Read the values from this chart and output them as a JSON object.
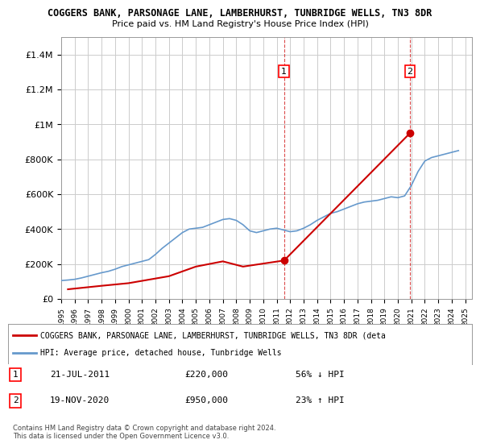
{
  "title1": "COGGERS BANK, PARSONAGE LANE, LAMBERHURST, TUNBRIDGE WELLS, TN3 8DR",
  "title2": "Price paid vs. HM Land Registry's House Price Index (HPI)",
  "ylim": [
    0,
    1500000
  ],
  "yticks": [
    0,
    200000,
    400000,
    600000,
    800000,
    1000000,
    1200000,
    1400000
  ],
  "ytick_labels": [
    "£0",
    "£200K",
    "£400K",
    "£600K",
    "£800K",
    "£1M",
    "£1.2M",
    "£1.4M"
  ],
  "year_start": 1995,
  "year_end": 2025,
  "hpi_color": "#6699cc",
  "price_color": "#cc0000",
  "vline_color_1": "#cc0000",
  "vline_color_2": "#cc0000",
  "marker_color_1": "#cc0000",
  "marker_color_2": "#cc0000",
  "transaction_1": {
    "year": 2011.55,
    "price": 220000,
    "label": "1",
    "date": "21-JUL-2011",
    "pct": "56% ↓ HPI"
  },
  "transaction_2": {
    "year": 2020.9,
    "price": 950000,
    "label": "2",
    "date": "19-NOV-2020",
    "pct": "23% ↑ HPI"
  },
  "legend_label_red": "COGGERS BANK, PARSONAGE LANE, LAMBERHURST, TUNBRIDGE WELLS, TN3 8DR (deta",
  "legend_label_blue": "HPI: Average price, detached house, Tunbridge Wells",
  "footnote": "Contains HM Land Registry data © Crown copyright and database right 2024.\nThis data is licensed under the Open Government Licence v3.0.",
  "bg_color": "#ffffff",
  "grid_color": "#cccccc",
  "hpi_data_x": [
    1995.0,
    1995.5,
    1996.0,
    1996.5,
    1997.0,
    1997.5,
    1998.0,
    1998.5,
    1999.0,
    1999.5,
    2000.0,
    2000.5,
    2001.0,
    2001.5,
    2002.0,
    2002.5,
    2003.0,
    2003.5,
    2004.0,
    2004.5,
    2005.0,
    2005.5,
    2006.0,
    2006.5,
    2007.0,
    2007.5,
    2008.0,
    2008.5,
    2009.0,
    2009.5,
    2010.0,
    2010.5,
    2011.0,
    2011.5,
    2012.0,
    2012.5,
    2013.0,
    2013.5,
    2014.0,
    2014.5,
    2015.0,
    2015.5,
    2016.0,
    2016.5,
    2017.0,
    2017.5,
    2018.0,
    2018.5,
    2019.0,
    2019.5,
    2020.0,
    2020.5,
    2021.0,
    2021.5,
    2022.0,
    2022.5,
    2023.0,
    2023.5,
    2024.0,
    2024.5
  ],
  "hpi_data_y": [
    105000,
    108000,
    112000,
    120000,
    130000,
    140000,
    150000,
    158000,
    170000,
    185000,
    195000,
    205000,
    215000,
    225000,
    255000,
    290000,
    320000,
    350000,
    380000,
    400000,
    405000,
    410000,
    425000,
    440000,
    455000,
    460000,
    450000,
    425000,
    390000,
    380000,
    390000,
    400000,
    405000,
    395000,
    385000,
    390000,
    405000,
    425000,
    450000,
    470000,
    490000,
    500000,
    515000,
    530000,
    545000,
    555000,
    560000,
    565000,
    575000,
    585000,
    580000,
    590000,
    650000,
    730000,
    790000,
    810000,
    820000,
    830000,
    840000,
    850000
  ],
  "price_data_x": [
    1995.5,
    1998.0,
    2000.0,
    2003.0,
    2005.0,
    2007.0,
    2008.5,
    2011.55,
    2020.9
  ],
  "price_data_y": [
    55000,
    75000,
    90000,
    130000,
    185000,
    215000,
    185000,
    220000,
    950000
  ]
}
